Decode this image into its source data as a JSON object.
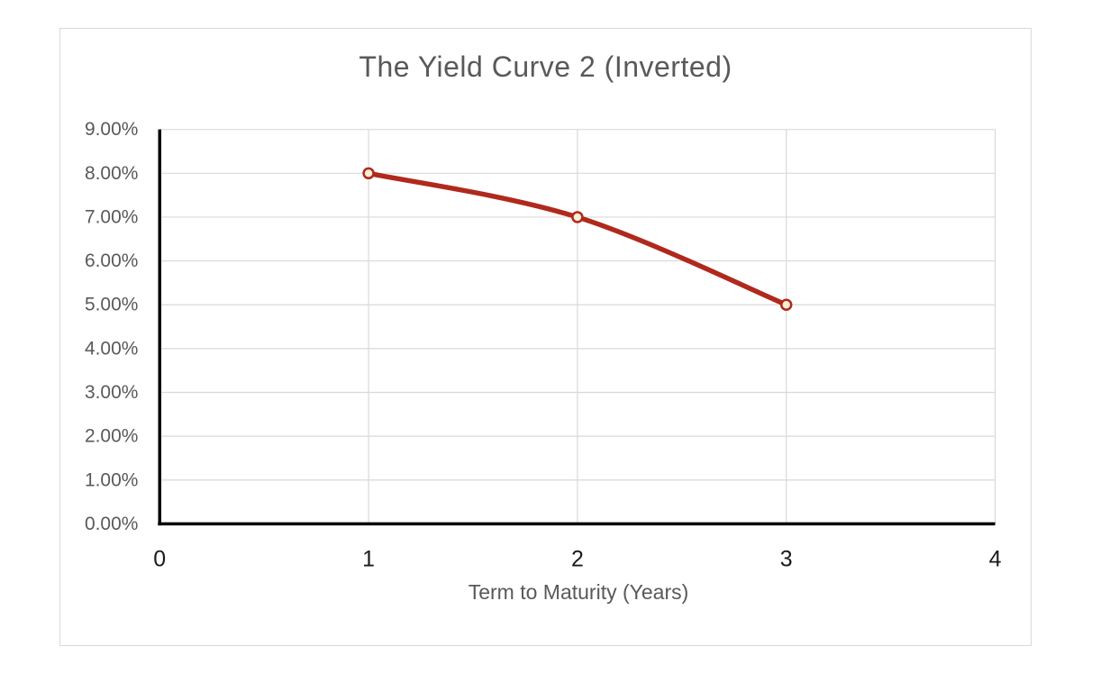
{
  "page": {
    "background": "#FFFFFF"
  },
  "chart_data": {
    "type": "line",
    "title": "The Yield Curve 2 (Inverted)",
    "xlabel": "Term to Maturity (Years)",
    "ylabel": "",
    "x": [
      1,
      2,
      3
    ],
    "y": [
      8,
      7,
      5
    ],
    "xlim": [
      0,
      4
    ],
    "ylim": [
      0,
      9
    ],
    "x_tick_labels": [
      "0",
      "1",
      "2",
      "3",
      "4"
    ],
    "y_tick_labels": [
      "0.00%",
      "1.00%",
      "2.00%",
      "3.00%",
      "4.00%",
      "5.00%",
      "6.00%",
      "7.00%",
      "8.00%",
      "9.00%"
    ],
    "grid": true,
    "legend": "none",
    "smooth": true,
    "marker": "circle",
    "style": {
      "line_color": "#B0291C",
      "marker_fill": "#F9EFD4",
      "marker_stroke": "#B0291C",
      "gridline_color": "#D9D9D9",
      "axis_color": "#000000",
      "title_color": "#595959",
      "axis_title_color": "#595959",
      "y_tick_color": "#595959",
      "x_tick_color": "#1A1A1A",
      "frame_border_color": "#D9D9D9"
    }
  }
}
